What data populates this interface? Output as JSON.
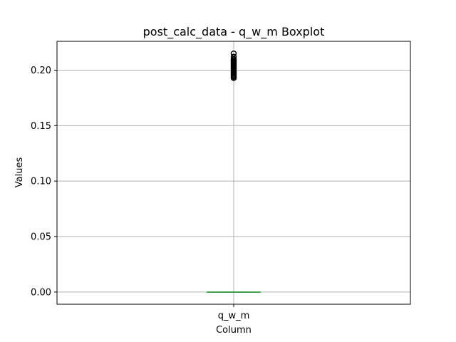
{
  "chart_data": {
    "type": "box",
    "title": "post_calc_data - q_w_m Boxplot",
    "xlabel": "Column",
    "ylabel": "Values",
    "categories": [
      "q_w_m"
    ],
    "ylim": [
      -0.011,
      0.226
    ],
    "yticks": [
      0.0,
      0.05,
      0.1,
      0.15,
      0.2
    ],
    "ytick_labels": [
      "0.00",
      "0.05",
      "0.10",
      "0.15",
      "0.20"
    ],
    "grid": true,
    "boxes": [
      {
        "category": "q_w_m",
        "min": 0.0,
        "q1": 0.0,
        "median": 0.0,
        "q3": 0.0,
        "max": 0.0,
        "outliers": [
          0.193,
          0.194,
          0.195,
          0.196,
          0.197,
          0.198,
          0.199,
          0.2,
          0.201,
          0.202,
          0.203,
          0.204,
          0.205,
          0.206,
          0.207,
          0.208,
          0.209,
          0.21,
          0.212,
          0.215
        ]
      }
    ],
    "colors": {
      "box": "#1f77b4",
      "median": "#2ca02c",
      "whisker": "#1f77b4",
      "outlier": "#000000",
      "grid": "#b0b0b0"
    }
  }
}
